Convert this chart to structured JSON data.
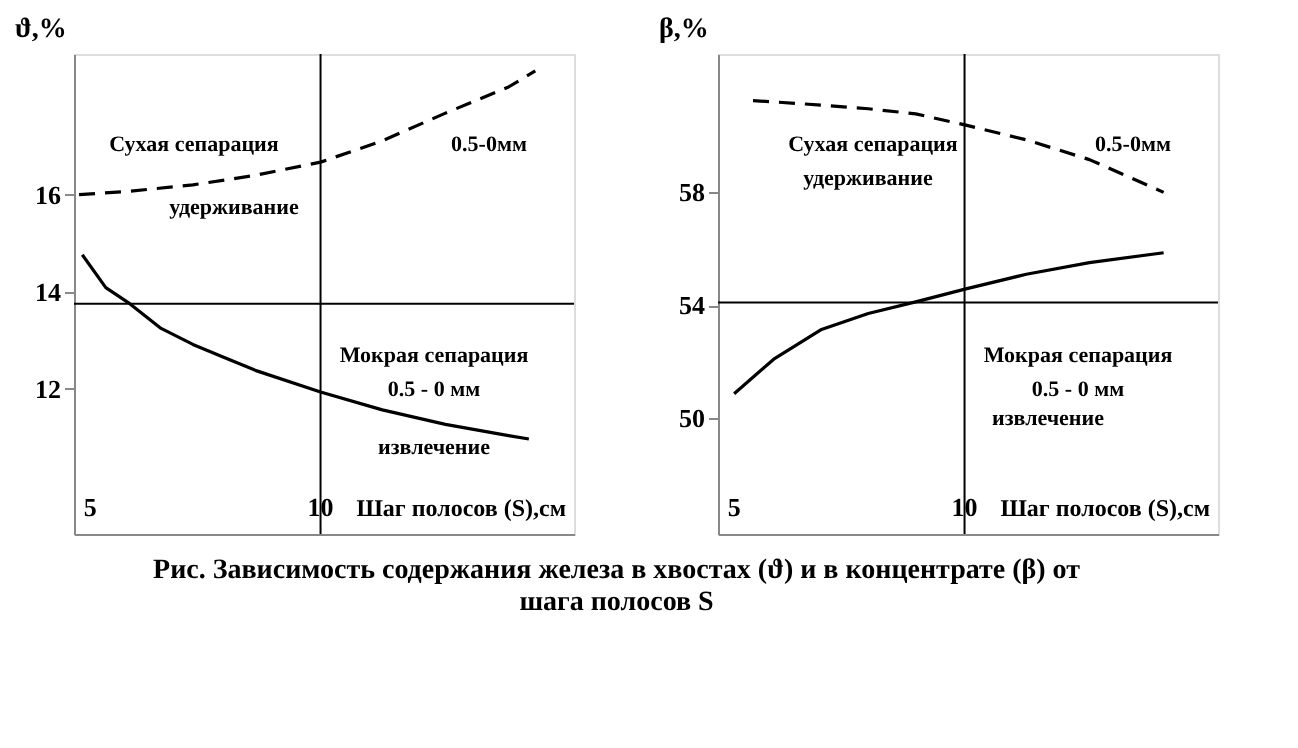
{
  "chart_data": [
    {
      "type": "line",
      "ylabel": "ϑ,%",
      "xlabel": "Шаг полосов (S),см",
      "xlim": [
        4.65,
        15.5
      ],
      "xticks": [
        5,
        10
      ],
      "ylim": [
        9,
        18.9
      ],
      "yticks": [
        12,
        14,
        16
      ],
      "grid": false,
      "marker": "none",
      "series": [
        {
          "color": "#000000",
          "line_style": "dashed",
          "x": [
            4.76,
            5.86,
            7.23,
            8.6,
            10,
            11.34,
            12.71,
            14.08,
            14.66
          ],
          "values": [
            16,
            16.07,
            16.2,
            16.4,
            16.67,
            17.11,
            17.68,
            18.22,
            18.55
          ]
        },
        {
          "color": "#000000",
          "line_style": "solid",
          "x": [
            4.83,
            5.34,
            5.86,
            6.54,
            7.23,
            7.91,
            8.6,
            10,
            11.34,
            12.71,
            14.08,
            14.52
          ],
          "values": [
            14.76,
            14.08,
            13.75,
            13.24,
            12.91,
            12.64,
            12.37,
            11.93,
            11.56,
            11.26,
            11.03,
            10.96
          ]
        }
      ],
      "ref_lines": [
        {
          "axis": "x",
          "value": 10
        },
        {
          "axis": "y",
          "value": 13.75
        }
      ],
      "annotations": [
        "Сухая сепарация",
        "0.5-0мм",
        "удерживание",
        "Мокрая сепарация",
        "0.5 - 0 мм",
        "извлечение",
        "Рис. Зависимость содержания железа в хвостах (ϑ) и в концентрате (β) от шага полосов S"
      ]
    },
    {
      "type": "line",
      "ylabel": "β,%",
      "xlabel": "Шаг полосов (S),см",
      "xlim": [
        4.65,
        15.5
      ],
      "xticks": [
        5,
        10
      ],
      "ylim": [
        45.9,
        62.9
      ],
      "yticks": [
        50,
        54,
        58
      ],
      "grid": false,
      "marker": "none",
      "series": [
        {
          "color": "#000000",
          "line_style": "dashed",
          "x": [
            5.41,
            6.54,
            7.91,
            8.94,
            10.03,
            11.34,
            12.71,
            14.32
          ],
          "values": [
            61.25,
            61.13,
            60.96,
            60.78,
            60.38,
            59.86,
            59.16,
            58
          ]
        },
        {
          "color": "#000000",
          "line_style": "solid",
          "x": [
            5,
            5.86,
            6.88,
            7.91,
            8.94,
            10.03,
            11.34,
            12.71,
            14.32
          ],
          "values": [
            50.87,
            52.09,
            53.13,
            53.71,
            54.12,
            54.58,
            55.1,
            55.51,
            55.86
          ]
        }
      ],
      "ref_lines": [
        {
          "axis": "x",
          "value": 10
        },
        {
          "axis": "y",
          "value": 54.1
        }
      ],
      "annotations": [
        "Сухая сепарация",
        "0.5-0мм",
        "удерживание",
        "Мокрая сепарация",
        "0.5 - 0 мм",
        "извлечение"
      ]
    }
  ]
}
